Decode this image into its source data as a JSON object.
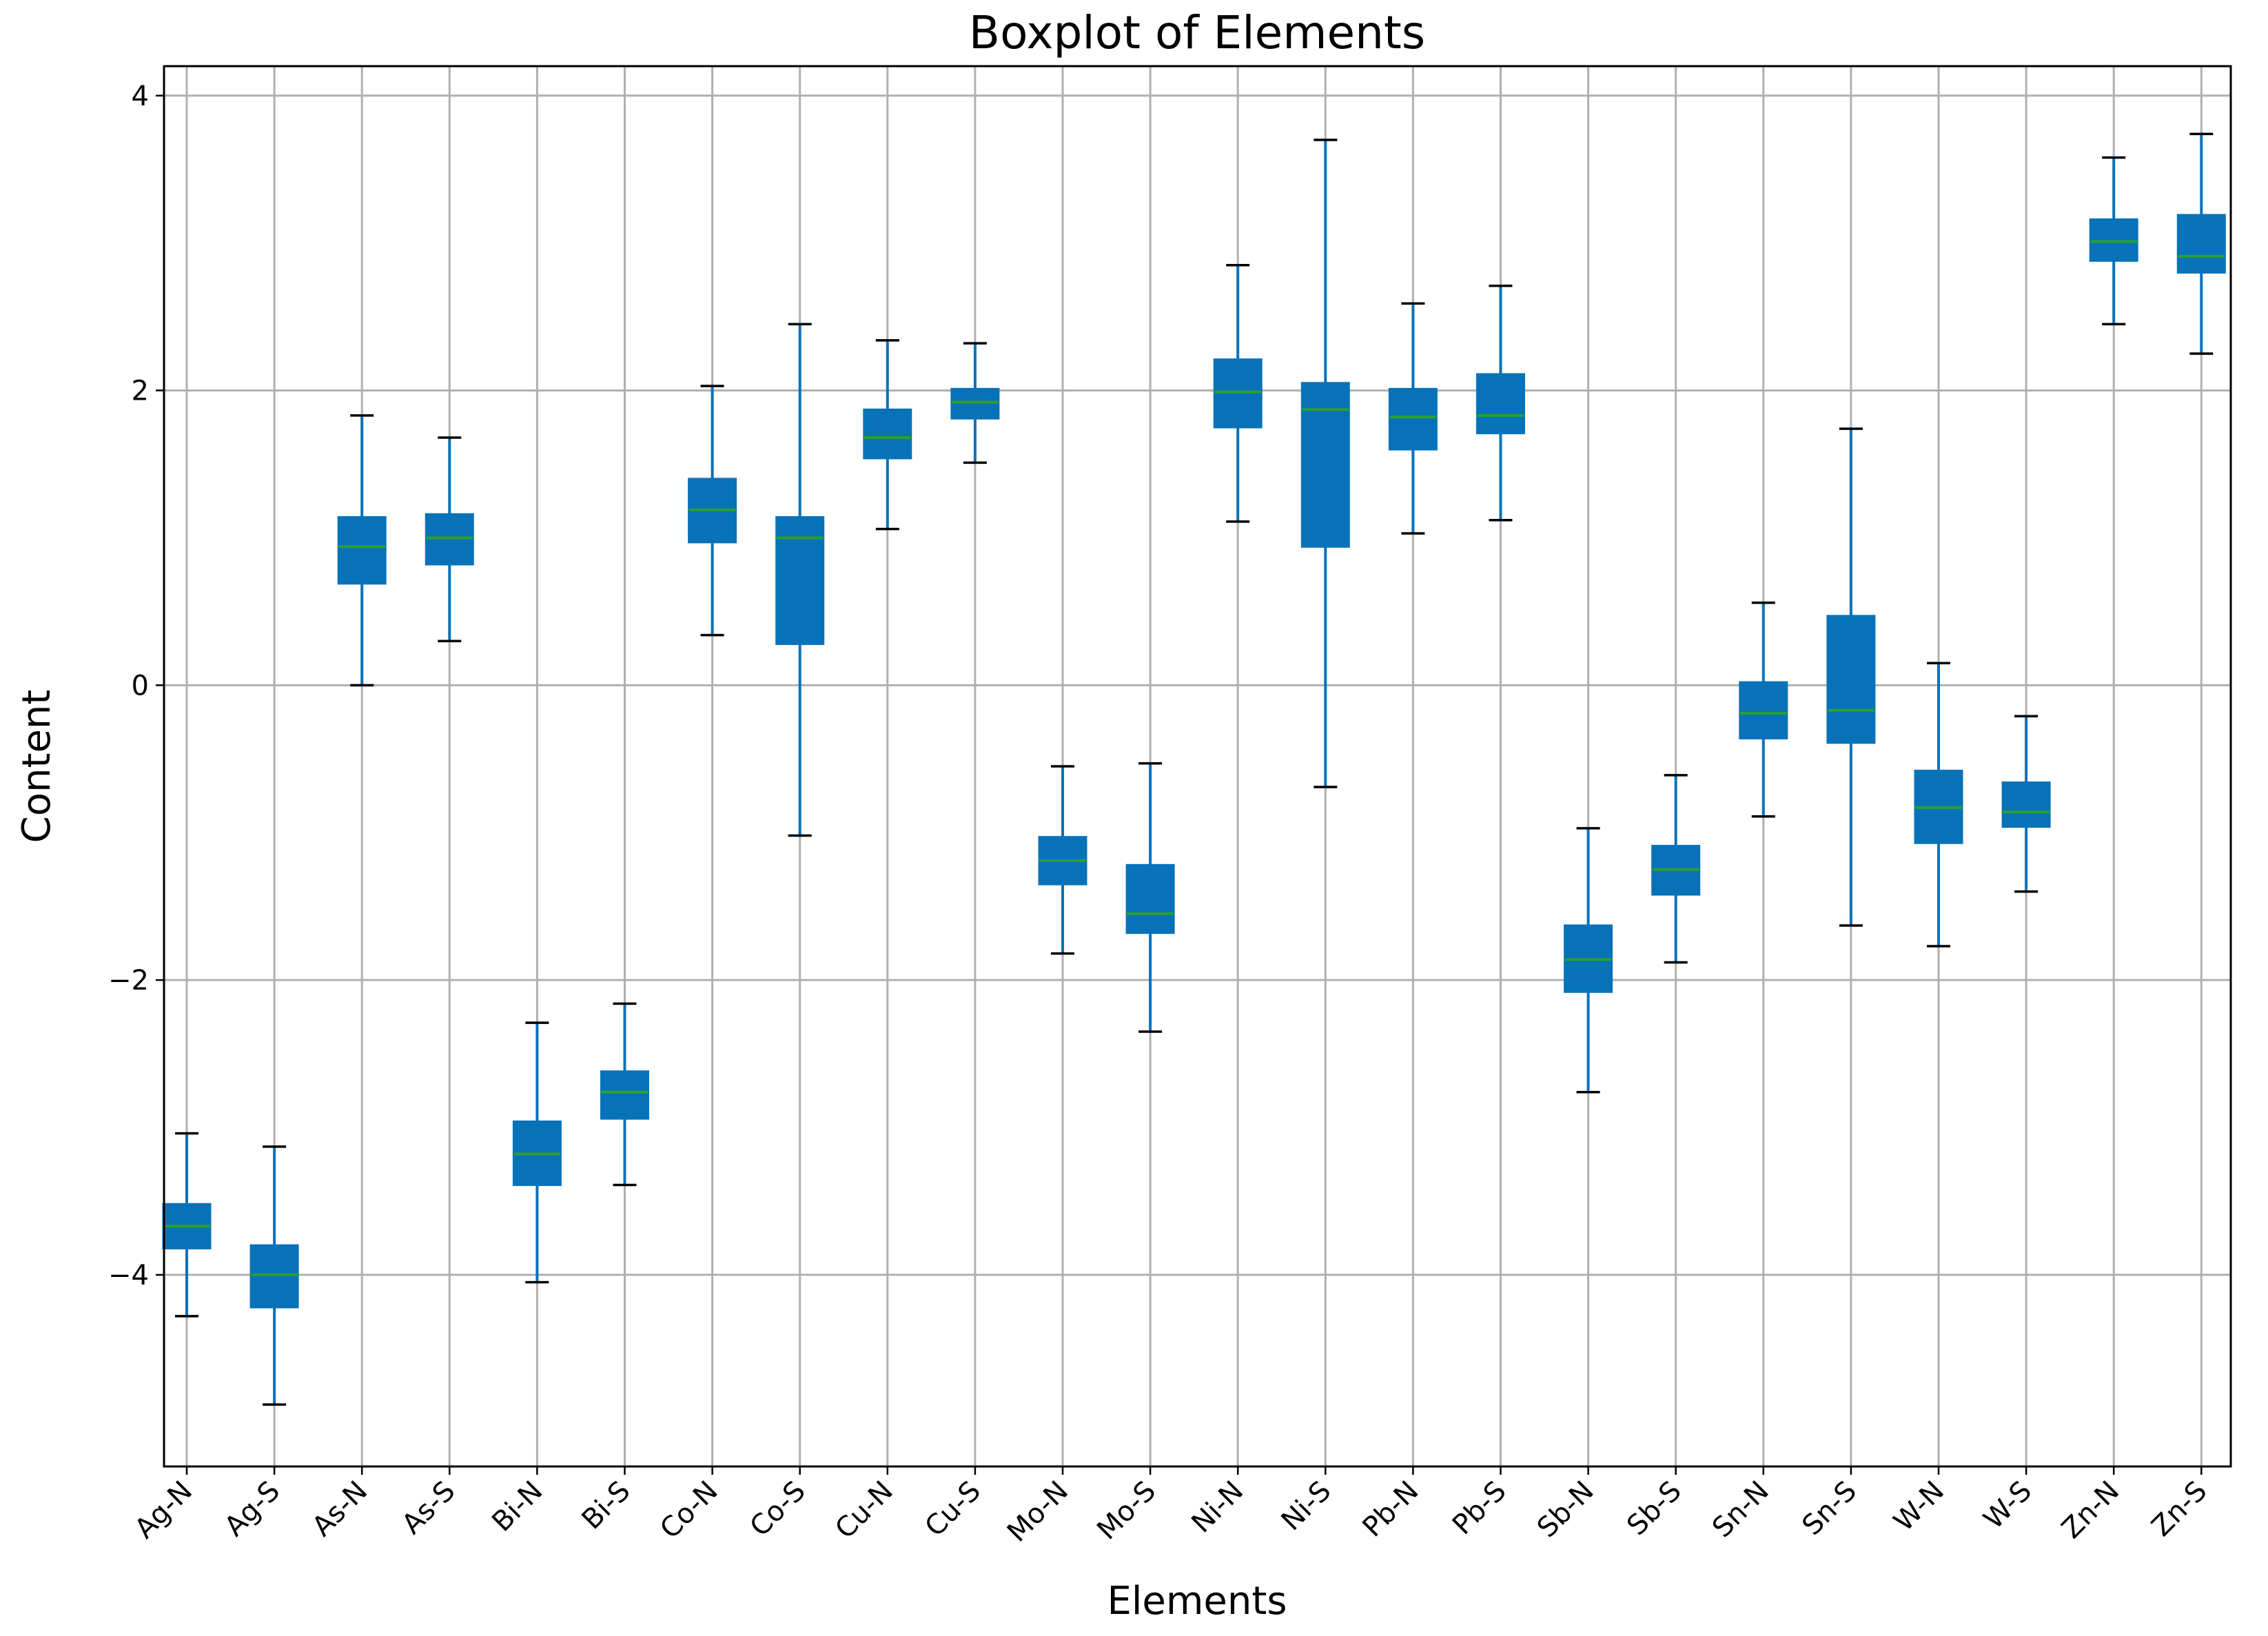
{
  "chart_data": {
    "type": "boxplot",
    "title": "Boxplot of Elements",
    "xlabel": "Elements",
    "ylabel": "Content",
    "ylim": [
      -5.3,
      4.2
    ],
    "yticks": [
      4,
      2,
      0,
      -2,
      -4
    ],
    "ytick_labels": [
      "4",
      "2",
      "0",
      "−2",
      "−4"
    ],
    "grid": true,
    "colors": {
      "box": "#0872b9",
      "median": "#2ca02c",
      "grid": "#b0b0b0"
    },
    "categories": [
      "Ag-N",
      "Ag-S",
      "As-N",
      "As-S",
      "Bi-N",
      "Bi-S",
      "Co-N",
      "Co-S",
      "Cu-N",
      "Cu-S",
      "Mo-N",
      "Mo-S",
      "Ni-N",
      "Ni-S",
      "Pb-N",
      "Pb-S",
      "Sb-N",
      "Sb-S",
      "Sn-N",
      "Sn-S",
      "W-N",
      "W-S",
      "Zn-N",
      "Zn-S"
    ],
    "boxes": [
      {
        "min": -4.28,
        "q1": -3.82,
        "median": -3.67,
        "q3": -3.52,
        "max": -3.04
      },
      {
        "min": -4.88,
        "q1": -4.22,
        "median": -4.0,
        "q3": -3.8,
        "max": -3.13
      },
      {
        "min": 0.0,
        "q1": 0.69,
        "median": 0.94,
        "q3": 1.14,
        "max": 1.83
      },
      {
        "min": 0.3,
        "q1": 0.82,
        "median": 1.0,
        "q3": 1.16,
        "max": 1.68
      },
      {
        "min": -4.05,
        "q1": -3.39,
        "median": -3.18,
        "q3": -2.96,
        "max": -2.29
      },
      {
        "min": -3.39,
        "q1": -2.94,
        "median": -2.76,
        "q3": -2.62,
        "max": -2.16
      },
      {
        "min": 0.34,
        "q1": 0.97,
        "median": 1.19,
        "q3": 1.4,
        "max": 2.03
      },
      {
        "min": -1.02,
        "q1": 0.28,
        "median": 1.0,
        "q3": 1.14,
        "max": 2.45
      },
      {
        "min": 1.06,
        "q1": 1.54,
        "median": 1.68,
        "q3": 1.87,
        "max": 2.34
      },
      {
        "min": 1.51,
        "q1": 1.81,
        "median": 1.92,
        "q3": 2.01,
        "max": 2.32
      },
      {
        "min": -1.82,
        "q1": -1.35,
        "median": -1.19,
        "q3": -1.03,
        "max": -0.55
      },
      {
        "min": -2.35,
        "q1": -1.68,
        "median": -1.55,
        "q3": -1.22,
        "max": -0.53
      },
      {
        "min": 1.11,
        "q1": 1.75,
        "median": 1.99,
        "q3": 2.21,
        "max": 2.85
      },
      {
        "min": -0.69,
        "q1": 0.94,
        "median": 1.87,
        "q3": 2.05,
        "max": 3.7
      },
      {
        "min": 1.03,
        "q1": 1.6,
        "median": 1.82,
        "q3": 2.01,
        "max": 2.59
      },
      {
        "min": 1.12,
        "q1": 1.71,
        "median": 1.83,
        "q3": 2.11,
        "max": 2.71
      },
      {
        "min": -2.76,
        "q1": -2.08,
        "median": -1.86,
        "q3": -1.63,
        "max": -0.97
      },
      {
        "min": -1.88,
        "q1": -1.42,
        "median": -1.25,
        "q3": -1.09,
        "max": -0.61
      },
      {
        "min": -0.89,
        "q1": -0.36,
        "median": -0.19,
        "q3": 0.02,
        "max": 0.56
      },
      {
        "min": -1.63,
        "q1": -0.39,
        "median": -0.17,
        "q3": 0.47,
        "max": 1.74
      },
      {
        "min": -1.77,
        "q1": -1.07,
        "median": -0.83,
        "q3": -0.58,
        "max": 0.15
      },
      {
        "min": -1.4,
        "q1": -0.96,
        "median": -0.86,
        "q3": -0.66,
        "max": -0.21
      },
      {
        "min": 2.45,
        "q1": 2.88,
        "median": 3.01,
        "q3": 3.16,
        "max": 3.58
      },
      {
        "min": 2.25,
        "q1": 2.8,
        "median": 2.91,
        "q3": 3.19,
        "max": 3.74
      }
    ]
  }
}
